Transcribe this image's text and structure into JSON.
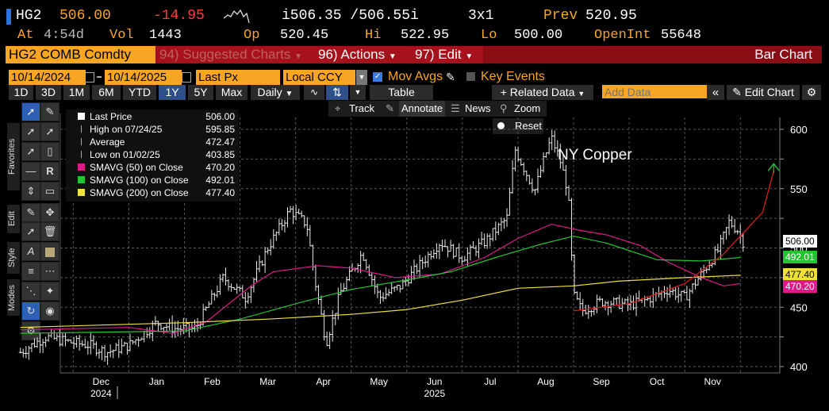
{
  "header": {
    "ticker": "HG2",
    "price": "506.00",
    "change": "-14.95",
    "bid_ask": "i506.35 /506.55i",
    "size": "3x1",
    "prev_label": "Prev",
    "prev_value": "520.95",
    "at_label": "At",
    "at_value": "4:54d",
    "vol_label": "Vol",
    "vol_value": "1443",
    "op_label": "Op",
    "op_value": "520.45",
    "hi_label": "Hi",
    "hi_value": "522.95",
    "lo_label": "Lo",
    "lo_value": "500.00",
    "openint_label": "OpenInt",
    "openint_value": "55648"
  },
  "command_bar": {
    "security": "HG2 COMB Comdty",
    "suggested": "94) Suggested Charts",
    "actions": "96) Actions",
    "edit": "97) Edit",
    "view_name": "Bar Chart"
  },
  "settings_bar": {
    "start_date": "10/14/2024",
    "end_date": "10/14/2025",
    "field": "Last Px",
    "currency": "Local CCY",
    "mov_avgs": "Mov Avgs",
    "key_events": "Key Events"
  },
  "toolbar": {
    "periods": [
      "1D",
      "3D",
      "1M",
      "6M",
      "YTD",
      "1Y",
      "5Y",
      "Max"
    ],
    "selected_period": "1Y",
    "frequency": "Daily",
    "table": "Table",
    "related_data": "Related Data",
    "add_data_placeholder": "Add Data",
    "edit_chart": "Edit Chart"
  },
  "chart_toolbar": {
    "track": "Track",
    "annotate": "Annotate",
    "news": "News",
    "zoom": "Zoom",
    "reset": "Reset"
  },
  "side_tabs": [
    "Favorites",
    "Edit",
    "Style",
    "Modes"
  ],
  "legend": [
    {
      "label": "Last Price",
      "value": "506.00",
      "color": "#ffffff"
    },
    {
      "label": "High on 07/24/25",
      "value": "595.85",
      "color": "#aaaaaa"
    },
    {
      "label": "Average",
      "value": "472.47",
      "color": "#aaaaaa"
    },
    {
      "label": "Low on 01/02/25",
      "value": "403.85",
      "color": "#aaaaaa"
    },
    {
      "label": "SMAVG (50)  on Close",
      "value": "470.20",
      "color": "#e0198a"
    },
    {
      "label": "SMAVG (100)  on Close",
      "value": "492.01",
      "color": "#24c431"
    },
    {
      "label": "SMAVG (200)  on Close",
      "value": "477.40",
      "color": "#f0e03a"
    }
  ],
  "value_chips": [
    {
      "value": "506.00",
      "bg": "#ffffff",
      "fg": "#000000",
      "y": 506.0
    },
    {
      "value": "492.01",
      "bg": "#24c431",
      "fg": "#ffffff",
      "y": 492.01
    },
    {
      "value": "477.40",
      "bg": "#f0e03a",
      "fg": "#000000",
      "y": 477.4
    },
    {
      "value": "470.20",
      "bg": "#e0198a",
      "fg": "#ffffff",
      "y": 470.2
    }
  ],
  "chart_data": {
    "type": "bar",
    "title": "NY Copper",
    "ylim": [
      398,
      610
    ],
    "yticks": [
      400,
      450,
      500,
      550,
      600
    ],
    "grid": true,
    "x_labels": [
      {
        "label": "Dec",
        "month": 1.5
      },
      {
        "label": "Jan",
        "month": 2.5
      },
      {
        "label": "Feb",
        "month": 3.5
      },
      {
        "label": "Mar",
        "month": 4.5
      },
      {
        "label": "Apr",
        "month": 5.5
      },
      {
        "label": "May",
        "month": 6.5
      },
      {
        "label": "Jun",
        "month": 7.5
      },
      {
        "label": "Jul",
        "month": 8.5
      },
      {
        "label": "Aug",
        "month": 9.5
      },
      {
        "label": "Sep",
        "month": 10.5
      },
      {
        "label": "Oct",
        "month": 11.5
      },
      {
        "label": "Nov",
        "month": 12.5
      }
    ],
    "year_labels": [
      {
        "label": "2024",
        "month": 1.5
      },
      {
        "label": "2025",
        "month": 7.5
      }
    ],
    "price_path": [
      [
        0.05,
        412
      ],
      [
        0.5,
        425
      ],
      [
        1.0,
        420
      ],
      [
        1.3,
        418
      ],
      [
        1.6,
        412
      ],
      [
        2.0,
        418
      ],
      [
        2.5,
        437
      ],
      [
        2.8,
        432
      ],
      [
        3.2,
        432
      ],
      [
        3.7,
        475
      ],
      [
        4.1,
        458
      ],
      [
        4.5,
        500
      ],
      [
        4.9,
        532
      ],
      [
        5.2,
        520
      ],
      [
        5.35,
        472
      ],
      [
        5.55,
        420
      ],
      [
        5.8,
        462
      ],
      [
        6.2,
        496
      ],
      [
        6.5,
        458
      ],
      [
        6.9,
        468
      ],
      [
        7.2,
        484
      ],
      [
        7.6,
        505
      ],
      [
        8.0,
        492
      ],
      [
        8.4,
        505
      ],
      [
        8.7,
        520
      ],
      [
        8.8,
        525
      ],
      [
        8.95,
        583
      ],
      [
        9.3,
        548
      ],
      [
        9.45,
        572
      ],
      [
        9.6,
        593
      ],
      [
        9.75,
        575
      ],
      [
        9.9,
        548
      ],
      [
        10.0,
        460
      ],
      [
        10.15,
        447
      ],
      [
        10.5,
        455
      ],
      [
        11.0,
        452
      ],
      [
        11.3,
        456
      ],
      [
        11.7,
        465
      ],
      [
        12.0,
        458
      ],
      [
        12.3,
        478
      ],
      [
        12.6,
        498
      ],
      [
        12.8,
        522
      ],
      [
        12.95,
        515
      ],
      [
        13.05,
        505
      ]
    ],
    "series": [
      {
        "name": "SMAVG (50)  on Close",
        "color": "#e0198a",
        "points": [
          [
            0.05,
            431
          ],
          [
            1.0,
            432
          ],
          [
            2.0,
            433
          ],
          [
            2.8,
            428
          ],
          [
            3.4,
            438
          ],
          [
            4.2,
            468
          ],
          [
            4.6,
            480
          ],
          [
            5.4,
            485
          ],
          [
            6.0,
            483
          ],
          [
            6.8,
            475
          ],
          [
            7.6,
            478
          ],
          [
            8.4,
            492
          ],
          [
            9.0,
            508
          ],
          [
            9.6,
            520
          ],
          [
            10.1,
            515
          ],
          [
            10.6,
            511
          ],
          [
            11.2,
            502
          ],
          [
            11.7,
            488
          ],
          [
            12.3,
            475
          ],
          [
            12.7,
            468
          ],
          [
            13.0,
            470
          ]
        ]
      },
      {
        "name": "SMAVG (100)  on Close",
        "color": "#24c431",
        "points": [
          [
            0.05,
            428
          ],
          [
            1.5,
            429
          ],
          [
            3.0,
            430
          ],
          [
            4.0,
            440
          ],
          [
            5.0,
            453
          ],
          [
            6.0,
            465
          ],
          [
            7.0,
            473
          ],
          [
            7.8,
            480
          ],
          [
            8.6,
            492
          ],
          [
            9.4,
            503
          ],
          [
            10.0,
            510
          ],
          [
            10.6,
            504
          ],
          [
            11.5,
            490
          ],
          [
            12.3,
            489
          ],
          [
            13.0,
            492
          ]
        ]
      },
      {
        "name": "SMAVG (200)  on Close",
        "color": "#f0e03a",
        "points": [
          [
            0.05,
            433
          ],
          [
            1.5,
            435
          ],
          [
            3.0,
            437
          ],
          [
            4.5,
            440
          ],
          [
            6.0,
            444
          ],
          [
            7.0,
            448
          ],
          [
            8.0,
            456
          ],
          [
            9.0,
            466
          ],
          [
            10.0,
            468
          ],
          [
            10.8,
            472
          ],
          [
            12.0,
            475
          ],
          [
            13.0,
            477
          ]
        ]
      }
    ],
    "annotation_arrow": {
      "color": "#d51a1a",
      "arrow_color": "#25c23a",
      "points": [
        [
          10.0,
          447
        ],
        [
          11.0,
          453
        ],
        [
          12.0,
          470
        ],
        [
          12.7,
          495
        ],
        [
          13.4,
          530
        ],
        [
          13.6,
          565
        ]
      ]
    }
  }
}
